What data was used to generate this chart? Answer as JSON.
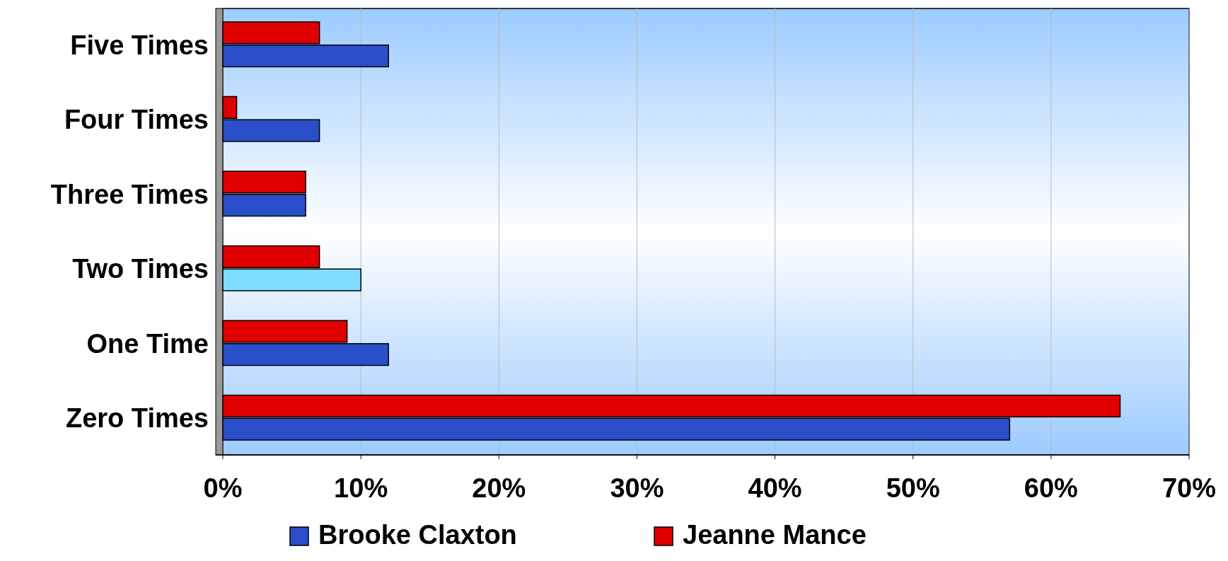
{
  "chart_data": {
    "type": "bar",
    "orientation": "horizontal",
    "categories": [
      "Five Times",
      "Four Times",
      "Three Times",
      "Two Times",
      "One Time",
      "Zero Times"
    ],
    "series": [
      {
        "name": "Brooke Claxton",
        "color": "#2a4fc8",
        "colors": [
          "#2a4fc8",
          "#2a4fc8",
          "#2a4fc8",
          "#7fdcff",
          "#2a4fc8",
          "#2a4fc8"
        ],
        "values": [
          12,
          7,
          6,
          10,
          12,
          57
        ]
      },
      {
        "name": "Jeanne Mance",
        "color": "#e00000",
        "values": [
          7,
          1,
          6,
          7,
          9,
          65
        ]
      }
    ],
    "xlim": [
      0,
      70
    ],
    "xticks": [
      {
        "value": 0,
        "label": "0%"
      },
      {
        "value": 10,
        "label": "10%"
      },
      {
        "value": 20,
        "label": "20%"
      },
      {
        "value": 30,
        "label": "30%"
      },
      {
        "value": 40,
        "label": "40%"
      },
      {
        "value": 50,
        "label": "50%"
      },
      {
        "value": 60,
        "label": "60%"
      },
      {
        "value": 70,
        "label": "70%"
      }
    ],
    "grid": "x",
    "legend": "bottom"
  }
}
